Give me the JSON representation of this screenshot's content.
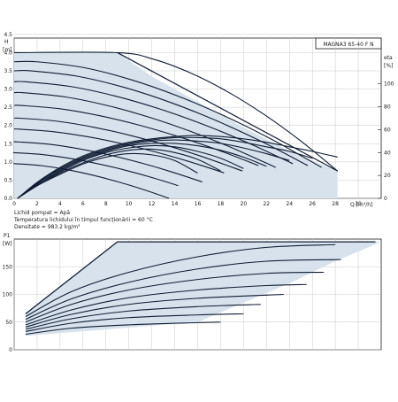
{
  "chart_data": [
    {
      "type": "line",
      "model_label": "MAGNA3 65-40 F N",
      "y_unit_symbol": "H",
      "y_unit": "[m]",
      "x_unit": "Q [m³/h]",
      "eta_symbol": "eta",
      "eta_unit": "[%]",
      "xlim": [
        0,
        32
      ],
      "ylim": [
        0,
        4.4
      ],
      "eta_lim": [
        0,
        140
      ],
      "x_ticks": [
        "0",
        "2",
        "4",
        "6",
        "8",
        "10",
        "12",
        "14",
        "16",
        "18",
        "20",
        "22",
        "24",
        "26",
        "28",
        "30"
      ],
      "y_ticks": [
        "0.0",
        "0.5",
        "1.0",
        "1.5",
        "2.0",
        "2.5",
        "3.0",
        "3.5",
        "4.0",
        "4.5"
      ],
      "eta_ticks": [
        "0",
        "20",
        "40",
        "60",
        "80",
        "100"
      ],
      "grid": true,
      "envelope": {
        "x": [
          0,
          9,
          12,
          16,
          20,
          24,
          28.2,
          28.2,
          0
        ],
        "y": [
          4.0,
          4.0,
          3.35,
          2.65,
          1.95,
          1.3,
          0.75,
          0,
          0
        ]
      },
      "head_curves": [
        {
          "y0": 4.0,
          "flat": 9.0,
          "end": [
            28.2,
            0.75
          ]
        },
        {
          "y0": 3.75,
          "flat": 2.0,
          "end": [
            26.8,
            0.85
          ]
        },
        {
          "y0": 3.5,
          "flat": 1.5,
          "end": [
            25.6,
            0.9
          ]
        },
        {
          "y0": 3.2,
          "flat": 1.0,
          "end": [
            24.3,
            0.95
          ]
        },
        {
          "y0": 2.9,
          "flat": 0.8,
          "end": [
            22.8,
            0.85
          ]
        },
        {
          "y0": 2.55,
          "flat": 0.6,
          "end": [
            21.3,
            0.9
          ]
        },
        {
          "y0": 2.2,
          "flat": 0.5,
          "end": [
            19.9,
            0.75
          ]
        },
        {
          "y0": 1.9,
          "flat": 0.4,
          "end": [
            18.3,
            0.7
          ]
        },
        {
          "y0": 1.55,
          "flat": 0.3,
          "end": [
            16.4,
            0.45
          ]
        },
        {
          "y0": 1.25,
          "flat": 0.2,
          "end": [
            14.3,
            0.35
          ]
        },
        {
          "y0": 0.95,
          "flat": 0.2,
          "end": [
            13.5,
            0.0
          ]
        }
      ],
      "eta_curves": [
        {
          "x": [
            0.3,
            2,
            4,
            6,
            8,
            10,
            12,
            14,
            16,
            18,
            20,
            22,
            24,
            26,
            28.2
          ],
          "y": [
            0,
            14,
            27,
            37,
            44,
            49,
            52,
            54,
            55,
            54,
            52,
            49,
            45,
            41,
            36
          ]
        },
        {
          "x": [
            0.3,
            2,
            4,
            6,
            8,
            10,
            12,
            14,
            16,
            18,
            20,
            22,
            24,
            26
          ],
          "y": [
            0,
            13,
            26,
            36,
            43,
            48,
            51,
            53,
            53,
            52,
            49,
            45,
            41,
            35
          ]
        },
        {
          "x": [
            0.3,
            2,
            4,
            6,
            8,
            10,
            12,
            14,
            16,
            18,
            20,
            22,
            24
          ],
          "y": [
            0,
            13,
            25,
            35,
            42,
            47,
            50,
            51,
            50,
            48,
            44,
            39,
            33
          ]
        },
        {
          "x": [
            0.3,
            2,
            4,
            6,
            8,
            10,
            12,
            14,
            16,
            18,
            20,
            22
          ],
          "y": [
            0,
            12,
            24,
            34,
            41,
            46,
            48,
            48,
            46,
            42,
            36,
            28
          ]
        },
        {
          "x": [
            0.3,
            2,
            4,
            6,
            8,
            10,
            12,
            14,
            16,
            18,
            20
          ],
          "y": [
            0,
            12,
            23,
            33,
            40,
            44,
            46,
            45,
            41,
            35,
            26
          ]
        },
        {
          "x": [
            0.3,
            2,
            4,
            6,
            8,
            10,
            12,
            14,
            16,
            18
          ],
          "y": [
            0,
            11,
            22,
            31,
            38,
            42,
            43,
            40,
            34,
            24
          ]
        },
        {
          "x": [
            0.3,
            2,
            4,
            6,
            8,
            10,
            12,
            14,
            16
          ],
          "y": [
            0,
            11,
            21,
            30,
            36,
            39,
            38,
            33,
            22
          ]
        }
      ]
    },
    {
      "type": "line",
      "y_unit_symbol": "P1",
      "y_unit": "[W]",
      "xlim": [
        0,
        32
      ],
      "ylim": [
        0,
        200
      ],
      "y_ticks": [
        "0",
        "50",
        "100",
        "150"
      ],
      "grid": true,
      "envelope": {
        "x": [
          1,
          9,
          32,
          28,
          24,
          20,
          16,
          1
        ],
        "y": [
          65,
          195,
          195,
          160,
          120,
          85,
          50,
          25
        ]
      },
      "power_curves": [
        {
          "x": [
            1,
            9,
            31.5
          ],
          "y": [
            65,
            195,
            195
          ]
        },
        {
          "x": [
            1,
            5,
            10,
            16,
            22,
            28
          ],
          "y": [
            60,
            105,
            140,
            168,
            185,
            190
          ]
        },
        {
          "x": [
            1,
            5,
            10,
            16,
            22,
            28.5
          ],
          "y": [
            55,
            92,
            122,
            146,
            160,
            163
          ]
        },
        {
          "x": [
            1,
            5,
            10,
            16,
            22,
            27
          ],
          "y": [
            50,
            82,
            108,
            127,
            138,
            140
          ]
        },
        {
          "x": [
            1,
            5,
            10,
            16,
            22,
            25.5
          ],
          "y": [
            45,
            72,
            94,
            108,
            116,
            118
          ]
        },
        {
          "x": [
            1,
            5,
            10,
            16,
            23.5
          ],
          "y": [
            41,
            64,
            82,
            93,
            100
          ]
        },
        {
          "x": [
            1,
            5,
            10,
            16,
            21.5
          ],
          "y": [
            37,
            56,
            70,
            78,
            82
          ]
        },
        {
          "x": [
            1,
            5,
            10,
            16,
            20
          ],
          "y": [
            33,
            48,
            58,
            63,
            65
          ]
        },
        {
          "x": [
            1,
            5,
            10,
            16,
            18
          ],
          "y": [
            28,
            39,
            45,
            49,
            50
          ]
        }
      ]
    }
  ],
  "notes": [
    "Lichid pompat = Apă",
    "Temperatura lichidului în timpul funcționării = 60 °C",
    "Densitate = 983.2 kg/m³"
  ],
  "colors": {
    "curve": "#0f1c33",
    "fill": "#d7e2ec",
    "grid": "#c8c8c8",
    "axis": "#1a1a1a"
  }
}
